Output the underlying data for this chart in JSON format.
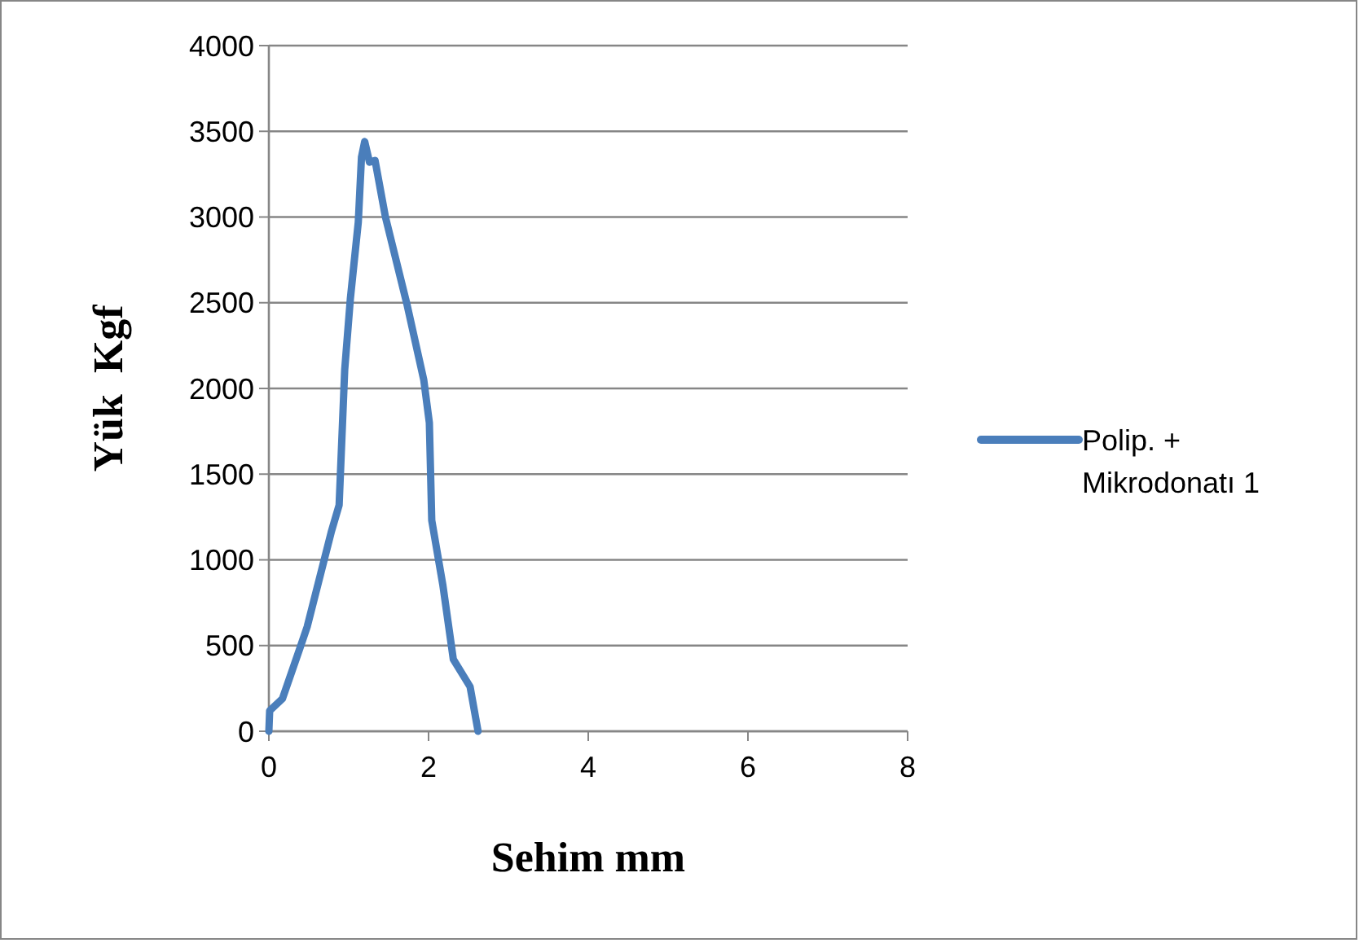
{
  "chart_data": {
    "type": "line",
    "xlabel": "Sehim mm",
    "ylabel": "Yük  Kgf",
    "xlim": [
      0,
      8
    ],
    "xticks": [
      0,
      2,
      4,
      6,
      8
    ],
    "ylim": [
      0,
      4000
    ],
    "yticks": [
      0,
      500,
      1000,
      1500,
      2000,
      2500,
      3000,
      3500,
      4000
    ],
    "grid": "y",
    "legend": "right",
    "marker": "none",
    "line_style": "solid",
    "series": [
      {
        "name": "Polip. + Mikrodonatı 1",
        "color": "#4a7ebb",
        "x": [
          0,
          0.01,
          0.17,
          0.4,
          0.48,
          0.78,
          0.88,
          0.95,
          1.02,
          1.12,
          1.16,
          1.2,
          1.26,
          1.33,
          1.46,
          1.73,
          1.94,
          2.01,
          2.04,
          2.18,
          2.31,
          2.52,
          2.62
        ],
        "values": [
          0,
          120,
          190,
          500,
          610,
          1160,
          1320,
          2110,
          2520,
          2970,
          3350,
          3440,
          3320,
          3330,
          3000,
          2490,
          2050,
          1800,
          1230,
          850,
          420,
          260,
          0
        ]
      }
    ]
  }
}
